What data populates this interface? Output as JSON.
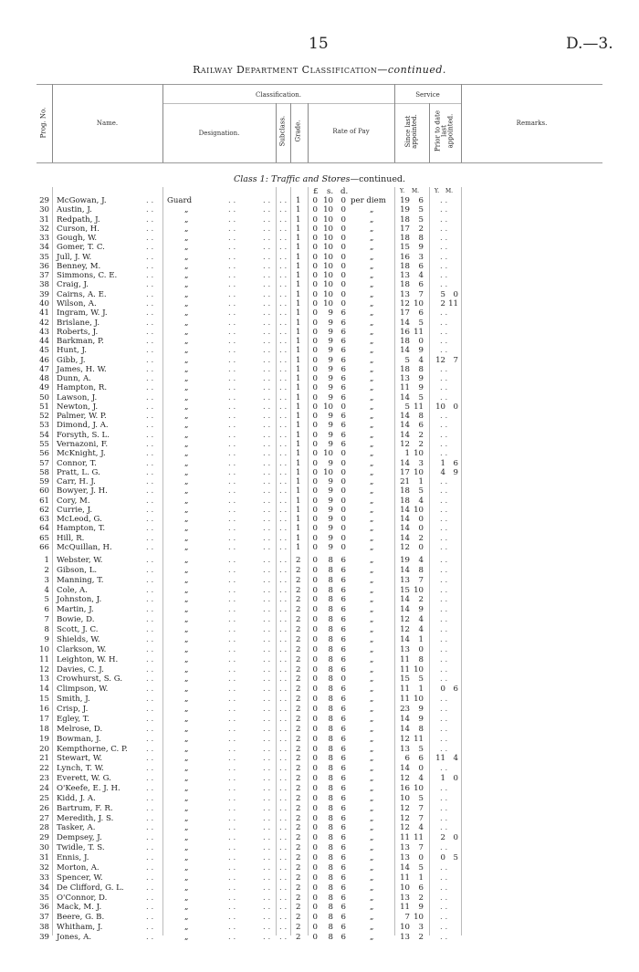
{
  "page_number": "15",
  "doc_ref": "D.—3.",
  "title": "Railway Department Classification",
  "title_suffix": "—continued.",
  "headers": {
    "prog": "Prog. No.",
    "name": "Name.",
    "classification": "Classification.",
    "designation": "Designation.",
    "subclass": "Subclass.",
    "grade": "Grade.",
    "rate": "Rate of Pay",
    "service": "Service",
    "since": "Since last appointed.",
    "prior": "Prior to date last appointed.",
    "remarks": "Remarks."
  },
  "section_title": "Class 1: Traffic and Stores",
  "section_suffix": "—continued.",
  "units": {
    "pound": "£",
    "shilling": "s.",
    "pence": "d.",
    "years": "Y.",
    "months": "M."
  },
  "leader": ". .",
  "ditto": "„",
  "designation_first": "Guard",
  "per_first": "per diem",
  "empty_prior": ". .",
  "block1": [
    [
      "29",
      "McGowan, J.",
      "1",
      "0",
      "10",
      "0",
      "19",
      "6",
      "",
      ""
    ],
    [
      "30",
      "Austin, J.",
      "1",
      "0",
      "10",
      "0",
      "19",
      "5",
      "",
      ""
    ],
    [
      "31",
      "Redpath, J.",
      "1",
      "0",
      "10",
      "0",
      "18",
      "5",
      "",
      ""
    ],
    [
      "32",
      "Curson, H.",
      "1",
      "0",
      "10",
      "0",
      "17",
      "2",
      "",
      ""
    ],
    [
      "33",
      "Gough, W.",
      "1",
      "0",
      "10",
      "0",
      "18",
      "8",
      "",
      ""
    ],
    [
      "34",
      "Gomer, T. C.",
      "1",
      "0",
      "10",
      "0",
      "15",
      "9",
      "",
      ""
    ],
    [
      "35",
      "Jull, J. W.",
      "1",
      "0",
      "10",
      "0",
      "16",
      "3",
      "",
      ""
    ],
    [
      "36",
      "Benney, M.",
      "1",
      "0",
      "10",
      "0",
      "18",
      "6",
      "",
      ""
    ],
    [
      "37",
      "Simmons, C. E.",
      "1",
      "0",
      "10",
      "0",
      "13",
      "4",
      "",
      ""
    ],
    [
      "38",
      "Craig, J.",
      "1",
      "0",
      "10",
      "0",
      "18",
      "6",
      "",
      ""
    ],
    [
      "39",
      "Cairns, A. E.",
      "1",
      "0",
      "10",
      "0",
      "13",
      "7",
      "5",
      "0"
    ],
    [
      "40",
      "Wilson, A.",
      "1",
      "0",
      "10",
      "0",
      "12",
      "10",
      "2",
      "11"
    ],
    [
      "41",
      "Ingram, W. J.",
      "1",
      "0",
      "9",
      "6",
      "17",
      "6",
      "",
      ""
    ],
    [
      "42",
      "Brislane, J.",
      "1",
      "0",
      "9",
      "6",
      "14",
      "5",
      "",
      ""
    ],
    [
      "43",
      "Roberts, J.",
      "1",
      "0",
      "9",
      "6",
      "16",
      "11",
      "",
      ""
    ],
    [
      "44",
      "Barkman, P.",
      "1",
      "0",
      "9",
      "6",
      "18",
      "0",
      "",
      ""
    ],
    [
      "45",
      "Hunt, J.",
      "1",
      "0",
      "9",
      "6",
      "14",
      "9",
      "",
      ""
    ],
    [
      "46",
      "Gibb, J.",
      "1",
      "0",
      "9",
      "6",
      "5",
      "4",
      "12",
      "7"
    ],
    [
      "47",
      "James, H. W.",
      "1",
      "0",
      "9",
      "6",
      "18",
      "8",
      "",
      ""
    ],
    [
      "48",
      "Dunn, A.",
      "1",
      "0",
      "9",
      "6",
      "13",
      "9",
      "",
      ""
    ],
    [
      "49",
      "Hampton, R.",
      "1",
      "0",
      "9",
      "6",
      "11",
      "9",
      "",
      ""
    ],
    [
      "50",
      "Lawson, J.",
      "1",
      "0",
      "9",
      "6",
      "14",
      "5",
      "",
      ""
    ],
    [
      "51",
      "Newton, J.",
      "1",
      "0",
      "10",
      "0",
      "5",
      "11",
      "10",
      "0"
    ],
    [
      "52",
      "Palmer, W. P.",
      "1",
      "0",
      "9",
      "6",
      "14",
      "8",
      "",
      ""
    ],
    [
      "53",
      "Dimond, J. A.",
      "1",
      "0",
      "9",
      "6",
      "14",
      "6",
      "",
      ""
    ],
    [
      "54",
      "Forsyth, S. L.",
      "1",
      "0",
      "9",
      "6",
      "14",
      "2",
      "",
      ""
    ],
    [
      "55",
      "Vernazoni, F.",
      "1",
      "0",
      "9",
      "6",
      "12",
      "2",
      "",
      ""
    ],
    [
      "56",
      "McKnight, J.",
      "1",
      "0",
      "10",
      "0",
      "1",
      "10",
      "",
      ""
    ],
    [
      "57",
      "Connor, T.",
      "1",
      "0",
      "9",
      "0",
      "14",
      "3",
      "1",
      "6"
    ],
    [
      "58",
      "Pratt, L. G.",
      "1",
      "0",
      "10",
      "0",
      "17",
      "10",
      "4",
      "9"
    ],
    [
      "59",
      "Carr, H. J.",
      "1",
      "0",
      "9",
      "0",
      "21",
      "1",
      "",
      ""
    ],
    [
      "60",
      "Bowyer, J. H.",
      "1",
      "0",
      "9",
      "0",
      "18",
      "5",
      "",
      ""
    ],
    [
      "61",
      "Cory, M.",
      "1",
      "0",
      "9",
      "0",
      "18",
      "4",
      "",
      ""
    ],
    [
      "62",
      "Currie, J.",
      "1",
      "0",
      "9",
      "0",
      "14",
      "10",
      "",
      ""
    ],
    [
      "63",
      "McLeod, G.",
      "1",
      "0",
      "9",
      "0",
      "14",
      "0",
      "",
      ""
    ],
    [
      "64",
      "Hampton, T.",
      "1",
      "0",
      "9",
      "0",
      "14",
      "0",
      "",
      ""
    ],
    [
      "65",
      "Hill, R.",
      "1",
      "0",
      "9",
      "0",
      "14",
      "2",
      "",
      ""
    ],
    [
      "66",
      "McQuillan, H.",
      "1",
      "0",
      "9",
      "0",
      "12",
      "0",
      "",
      ""
    ]
  ],
  "block2": [
    [
      "1",
      "Webster, W.",
      "2",
      "0",
      "8",
      "6",
      "19",
      "4",
      "",
      ""
    ],
    [
      "2",
      "Gibson, L.",
      "2",
      "0",
      "8",
      "6",
      "14",
      "8",
      "",
      ""
    ],
    [
      "3",
      "Manning, T.",
      "2",
      "0",
      "8",
      "6",
      "13",
      "7",
      "",
      ""
    ],
    [
      "4",
      "Cole, A.",
      "2",
      "0",
      "8",
      "6",
      "15",
      "10",
      "",
      ""
    ],
    [
      "5",
      "Johnston, J.",
      "2",
      "0",
      "8",
      "6",
      "14",
      "2",
      "",
      ""
    ],
    [
      "6",
      "Martin, J.",
      "2",
      "0",
      "8",
      "6",
      "14",
      "9",
      "",
      ""
    ],
    [
      "7",
      "Bowie, D.",
      "2",
      "0",
      "8",
      "6",
      "12",
      "4",
      "",
      ""
    ],
    [
      "8",
      "Scott, J. C.",
      "2",
      "0",
      "8",
      "6",
      "12",
      "4",
      "",
      ""
    ],
    [
      "9",
      "Shields, W.",
      "2",
      "0",
      "8",
      "6",
      "14",
      "1",
      "",
      ""
    ],
    [
      "10",
      "Clarkson, W.",
      "2",
      "0",
      "8",
      "6",
      "13",
      "0",
      "",
      ""
    ],
    [
      "11",
      "Leighton, W. H.",
      "2",
      "0",
      "8",
      "6",
      "11",
      "8",
      "",
      ""
    ],
    [
      "12",
      "Davies, C. J.",
      "2",
      "0",
      "8",
      "6",
      "11",
      "10",
      "",
      ""
    ],
    [
      "13",
      "Crowhurst, S. G.",
      "2",
      "0",
      "8",
      "0",
      "15",
      "5",
      "",
      ""
    ],
    [
      "14",
      "Climpson, W.",
      "2",
      "0",
      "8",
      "6",
      "11",
      "1",
      "0",
      "6"
    ],
    [
      "15",
      "Smith, J.",
      "2",
      "0",
      "8",
      "6",
      "11",
      "10",
      "",
      ""
    ],
    [
      "16",
      "Crisp, J.",
      "2",
      "0",
      "8",
      "6",
      "23",
      "9",
      "",
      ""
    ],
    [
      "17",
      "Egley, T.",
      "2",
      "0",
      "8",
      "6",
      "14",
      "9",
      "",
      ""
    ],
    [
      "18",
      "Melrose, D.",
      "2",
      "0",
      "8",
      "6",
      "14",
      "8",
      "",
      ""
    ],
    [
      "19",
      "Bowman, J.",
      "2",
      "0",
      "8",
      "6",
      "12",
      "11",
      "",
      ""
    ],
    [
      "20",
      "Kempthorne, C. P.",
      "2",
      "0",
      "8",
      "6",
      "13",
      "5",
      "",
      ""
    ],
    [
      "21",
      "Stewart, W.",
      "2",
      "0",
      "8",
      "6",
      "6",
      "6",
      "11",
      "4"
    ],
    [
      "22",
      "Lynch, T. W.",
      "2",
      "0",
      "8",
      "6",
      "14",
      "0",
      "",
      ""
    ],
    [
      "23",
      "Everett, W. G.",
      "2",
      "0",
      "8",
      "6",
      "12",
      "4",
      "1",
      "0"
    ],
    [
      "24",
      "O'Keefe, E. J. H.",
      "2",
      "0",
      "8",
      "6",
      "16",
      "10",
      "",
      ""
    ],
    [
      "25",
      "Kidd, J. A.",
      "2",
      "0",
      "8",
      "6",
      "10",
      "5",
      "",
      ""
    ],
    [
      "26",
      "Bartrum, F. R.",
      "2",
      "0",
      "8",
      "6",
      "12",
      "7",
      "",
      ""
    ],
    [
      "27",
      "Meredith, J. S.",
      "2",
      "0",
      "8",
      "6",
      "12",
      "7",
      "",
      ""
    ],
    [
      "28",
      "Tasker, A.",
      "2",
      "0",
      "8",
      "6",
      "12",
      "4",
      "",
      ""
    ],
    [
      "29",
      "Dempsey, J.",
      "2",
      "0",
      "8",
      "6",
      "11",
      "11",
      "2",
      "0"
    ],
    [
      "30",
      "Twidle, T. S.",
      "2",
      "0",
      "8",
      "6",
      "13",
      "7",
      "",
      ""
    ],
    [
      "31",
      "Ennis, J.",
      "2",
      "0",
      "8",
      "6",
      "13",
      "0",
      "0",
      "5"
    ],
    [
      "32",
      "Morton, A.",
      "2",
      "0",
      "8",
      "6",
      "14",
      "5",
      "",
      ""
    ],
    [
      "33",
      "Spencer, W.",
      "2",
      "0",
      "8",
      "6",
      "11",
      "1",
      "",
      ""
    ],
    [
      "34",
      "De Clifford, G. L.",
      "2",
      "0",
      "8",
      "6",
      "10",
      "6",
      "",
      ""
    ],
    [
      "35",
      "O'Connor, D.",
      "2",
      "0",
      "8",
      "6",
      "13",
      "2",
      "",
      ""
    ],
    [
      "36",
      "Mack, M. J.",
      "2",
      "0",
      "8",
      "6",
      "11",
      "9",
      "",
      ""
    ],
    [
      "37",
      "Beere, G. B.",
      "2",
      "0",
      "8",
      "6",
      "7",
      "10",
      "",
      ""
    ],
    [
      "38",
      "Whitham, J.",
      "2",
      "0",
      "8",
      "6",
      "10",
      "3",
      "",
      ""
    ],
    [
      "39",
      "Jones, A.",
      "2",
      "0",
      "8",
      "6",
      "13",
      "2",
      "",
      ""
    ]
  ]
}
